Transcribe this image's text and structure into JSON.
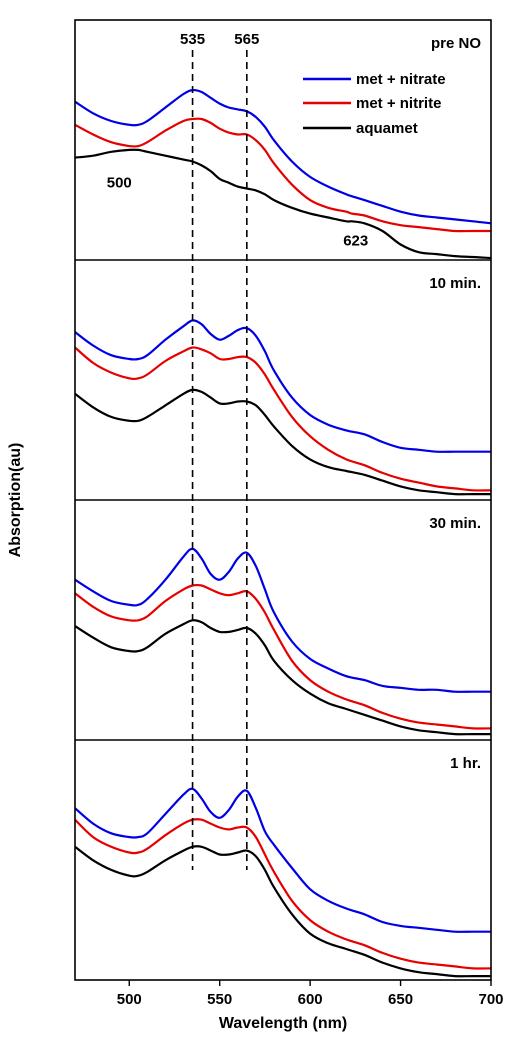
{
  "chart_data": {
    "type": "line",
    "xlabel": "Wavelength (nm)",
    "ylabel": "Absorption(au)",
    "xlim": [
      470,
      700
    ],
    "xticks": [
      500,
      550,
      600,
      650,
      700
    ],
    "grid": false,
    "legend": {
      "placement": "top-right",
      "entries": [
        {
          "name": "met + nitrate",
          "color": "#0000e6"
        },
        {
          "name": "met + nitrite",
          "color": "#e60000"
        },
        {
          "name": "aquamet",
          "color": "#000000"
        }
      ]
    },
    "reference_lines": [
      {
        "x": 535,
        "label": "535"
      },
      {
        "x": 565,
        "label": "565"
      }
    ],
    "annotations": [
      {
        "panel": 0,
        "x": 500,
        "y": 0.52,
        "label": "500"
      },
      {
        "panel": 0,
        "x": 623,
        "y": 0.19,
        "label": "623"
      }
    ],
    "panels": [
      {
        "label": "pre NO",
        "ylim": [
          0,
          1
        ],
        "x": [
          470,
          480,
          490,
          500,
          505,
          510,
          520,
          530,
          535,
          540,
          545,
          550,
          555,
          560,
          565,
          570,
          575,
          580,
          590,
          600,
          610,
          620,
          623,
          630,
          640,
          650,
          660,
          670,
          680,
          690,
          700
        ],
        "series": [
          {
            "name": "met + nitrate",
            "values": [
              0.81,
              0.75,
              0.71,
              0.69,
              0.69,
              0.71,
              0.78,
              0.85,
              0.87,
              0.86,
              0.83,
              0.8,
              0.78,
              0.77,
              0.76,
              0.73,
              0.68,
              0.61,
              0.5,
              0.42,
              0.37,
              0.33,
              0.32,
              0.3,
              0.27,
              0.24,
              0.22,
              0.21,
              0.2,
              0.19,
              0.18
            ]
          },
          {
            "name": "met + nitrite",
            "values": [
              0.69,
              0.64,
              0.6,
              0.58,
              0.58,
              0.6,
              0.66,
              0.71,
              0.72,
              0.72,
              0.7,
              0.67,
              0.65,
              0.64,
              0.64,
              0.61,
              0.56,
              0.49,
              0.38,
              0.3,
              0.26,
              0.24,
              0.23,
              0.22,
              0.19,
              0.17,
              0.16,
              0.15,
              0.14,
              0.14,
              0.14
            ]
          },
          {
            "name": "aquamet",
            "values": [
              0.52,
              0.53,
              0.55,
              0.56,
              0.56,
              0.55,
              0.53,
              0.51,
              0.5,
              0.48,
              0.45,
              0.41,
              0.39,
              0.37,
              0.36,
              0.35,
              0.33,
              0.3,
              0.26,
              0.23,
              0.21,
              0.19,
              0.19,
              0.18,
              0.14,
              0.07,
              0.03,
              0.02,
              0.01,
              0.005,
              0.0
            ]
          }
        ]
      },
      {
        "label": "10 min.",
        "ylim": [
          0,
          1
        ],
        "x": [
          470,
          480,
          490,
          500,
          505,
          510,
          520,
          530,
          535,
          540,
          545,
          550,
          555,
          560,
          565,
          570,
          575,
          580,
          590,
          600,
          610,
          620,
          630,
          640,
          650,
          660,
          670,
          680,
          690,
          700
        ],
        "series": [
          {
            "name": "met + nitrate",
            "values": [
              0.86,
              0.79,
              0.74,
              0.72,
              0.72,
              0.74,
              0.82,
              0.89,
              0.92,
              0.9,
              0.85,
              0.82,
              0.84,
              0.87,
              0.88,
              0.84,
              0.76,
              0.66,
              0.52,
              0.43,
              0.38,
              0.35,
              0.33,
              0.29,
              0.26,
              0.25,
              0.24,
              0.24,
              0.24,
              0.24
            ]
          },
          {
            "name": "met + nitrite",
            "values": [
              0.78,
              0.7,
              0.65,
              0.62,
              0.62,
              0.64,
              0.71,
              0.76,
              0.78,
              0.77,
              0.75,
              0.72,
              0.72,
              0.73,
              0.73,
              0.7,
              0.64,
              0.56,
              0.42,
              0.32,
              0.25,
              0.2,
              0.17,
              0.13,
              0.1,
              0.08,
              0.06,
              0.05,
              0.04,
              0.04
            ]
          },
          {
            "name": "aquamet",
            "values": [
              0.54,
              0.47,
              0.42,
              0.4,
              0.4,
              0.42,
              0.48,
              0.54,
              0.56,
              0.55,
              0.52,
              0.49,
              0.49,
              0.5,
              0.5,
              0.48,
              0.43,
              0.37,
              0.27,
              0.2,
              0.16,
              0.14,
              0.12,
              0.09,
              0.06,
              0.04,
              0.03,
              0.02,
              0.02,
              0.02
            ]
          }
        ]
      },
      {
        "label": "30 min.",
        "ylim": [
          0,
          1
        ],
        "x": [
          470,
          480,
          490,
          500,
          505,
          510,
          520,
          530,
          535,
          540,
          545,
          550,
          555,
          560,
          565,
          570,
          575,
          580,
          590,
          600,
          610,
          620,
          630,
          640,
          650,
          660,
          670,
          680,
          690,
          700
        ],
        "series": [
          {
            "name": "met + nitrate",
            "values": [
              0.82,
              0.76,
              0.71,
              0.69,
              0.69,
              0.72,
              0.82,
              0.94,
              0.98,
              0.93,
              0.85,
              0.82,
              0.86,
              0.93,
              0.96,
              0.89,
              0.77,
              0.65,
              0.5,
              0.41,
              0.36,
              0.32,
              0.3,
              0.27,
              0.26,
              0.25,
              0.25,
              0.24,
              0.24,
              0.24
            ]
          },
          {
            "name": "met + nitrite",
            "values": [
              0.75,
              0.68,
              0.63,
              0.61,
              0.61,
              0.63,
              0.71,
              0.77,
              0.79,
              0.79,
              0.77,
              0.75,
              0.74,
              0.75,
              0.76,
              0.72,
              0.65,
              0.56,
              0.4,
              0.3,
              0.24,
              0.2,
              0.17,
              0.13,
              0.1,
              0.08,
              0.07,
              0.06,
              0.05,
              0.05
            ]
          },
          {
            "name": "aquamet",
            "values": [
              0.58,
              0.52,
              0.47,
              0.45,
              0.45,
              0.47,
              0.54,
              0.59,
              0.61,
              0.6,
              0.57,
              0.55,
              0.55,
              0.56,
              0.57,
              0.54,
              0.48,
              0.4,
              0.3,
              0.23,
              0.18,
              0.15,
              0.12,
              0.09,
              0.06,
              0.04,
              0.03,
              0.02,
              0.02,
              0.02
            ]
          }
        ]
      },
      {
        "label": "1 hr.",
        "ylim": [
          0,
          1
        ],
        "x": [
          470,
          480,
          490,
          500,
          505,
          510,
          520,
          530,
          535,
          540,
          545,
          550,
          555,
          560,
          565,
          570,
          575,
          580,
          590,
          600,
          610,
          620,
          630,
          640,
          650,
          660,
          670,
          680,
          690,
          700
        ],
        "series": [
          {
            "name": "met + nitrate",
            "values": [
              0.88,
              0.8,
              0.75,
              0.73,
              0.73,
              0.75,
              0.85,
              0.95,
              0.98,
              0.93,
              0.86,
              0.83,
              0.87,
              0.94,
              0.97,
              0.88,
              0.76,
              0.69,
              0.57,
              0.46,
              0.4,
              0.36,
              0.33,
              0.29,
              0.27,
              0.26,
              0.25,
              0.24,
              0.24,
              0.24
            ]
          },
          {
            "name": "met + nitrite",
            "values": [
              0.82,
              0.73,
              0.68,
              0.65,
              0.65,
              0.67,
              0.74,
              0.8,
              0.82,
              0.82,
              0.8,
              0.78,
              0.77,
              0.78,
              0.78,
              0.73,
              0.64,
              0.55,
              0.4,
              0.3,
              0.24,
              0.2,
              0.17,
              0.13,
              0.1,
              0.08,
              0.07,
              0.06,
              0.05,
              0.05
            ]
          },
          {
            "name": "aquamet",
            "values": [
              0.68,
              0.61,
              0.56,
              0.53,
              0.53,
              0.55,
              0.61,
              0.66,
              0.68,
              0.68,
              0.66,
              0.64,
              0.64,
              0.65,
              0.66,
              0.63,
              0.56,
              0.47,
              0.33,
              0.23,
              0.18,
              0.15,
              0.12,
              0.08,
              0.05,
              0.03,
              0.02,
              0.01,
              0.01,
              0.01
            ]
          }
        ]
      }
    ]
  }
}
